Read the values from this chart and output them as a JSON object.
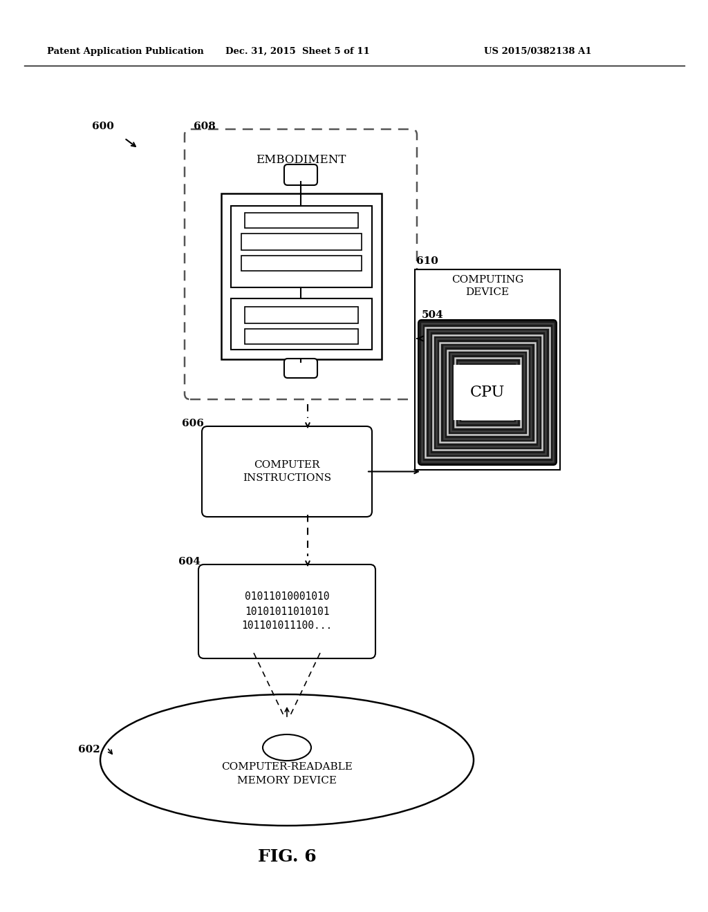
{
  "bg_color": "#ffffff",
  "header_left": "Patent Application Publication",
  "header_mid": "Dec. 31, 2015  Sheet 5 of 11",
  "header_right": "US 2015/0382138 A1",
  "fig_label": "FIG. 6",
  "label_600": "600",
  "label_602": "602",
  "label_604": "604",
  "label_606": "606",
  "label_608": "608",
  "label_610": "610",
  "label_504": "504",
  "text_embodiment": "EMBODIMENT",
  "text_computer_instructions": "COMPUTER\nINSTRUCTIONS",
  "text_binary": "01011010001010\n10101011010101\n101101011100...",
  "text_memory": "COMPUTER-READABLE\nMEMORY DEVICE",
  "text_computing": "COMPUTING\nDEVICE",
  "text_cpu": "CPU"
}
